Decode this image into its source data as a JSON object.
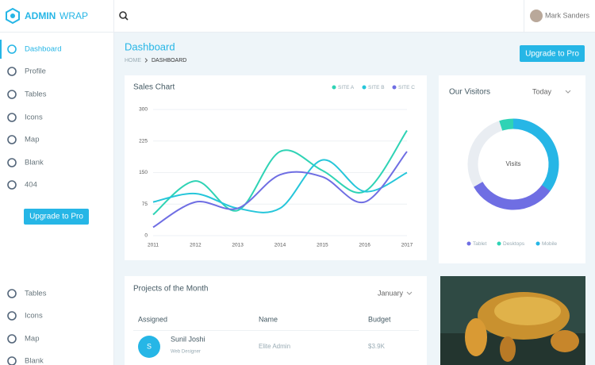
{
  "brand": {
    "bold": "ADMIN",
    "light": "WRAP"
  },
  "topbar": {
    "user": "Mark Sanders"
  },
  "sidebar": {
    "menu": [
      "Dashboard",
      "Profile",
      "Tables",
      "Icons",
      "Map",
      "Blank",
      "404"
    ],
    "button": "Upgrade to Pro",
    "menu_bottom": [
      "Tables",
      "Icons",
      "Map",
      "Blank"
    ]
  },
  "page_header": {
    "title": "Dashboard",
    "breadcrumb": [
      "HOME",
      "DASHBOARD"
    ],
    "button": "Upgrade to Pro"
  },
  "chart_data": [
    {
      "type": "line",
      "title": "Sales Chart",
      "categories": [
        "2011",
        "2012",
        "2013",
        "2014",
        "2015",
        "2016",
        "2017"
      ],
      "ylim": [
        0,
        300
      ],
      "yticks": [
        0,
        75,
        150,
        225,
        300
      ],
      "grid": true,
      "legend": "top-right",
      "series": [
        {
          "name": "SITE A",
          "color": "#2fd3b5",
          "values": [
            50,
            130,
            60,
            200,
            155,
            105,
            250
          ]
        },
        {
          "name": "SITE B",
          "color": "#26c6da",
          "values": [
            80,
            100,
            65,
            65,
            180,
            105,
            150
          ]
        },
        {
          "name": "SITE C",
          "color": "#6f6ee3",
          "values": [
            20,
            80,
            65,
            145,
            140,
            80,
            200
          ]
        }
      ]
    },
    {
      "type": "donut",
      "title": "Our Visitors",
      "filter": "Today",
      "center_label": "Visits",
      "categories": [
        "Tablet",
        "Desktops",
        "Mobile"
      ],
      "values": [
        32,
        5,
        35
      ],
      "colors": [
        "#6f6ee3",
        "#2fd3b5",
        "#26b6e6"
      ],
      "legend": "bottom"
    }
  ],
  "projects": {
    "title": "Projects of the Month",
    "filter": "January",
    "headers": [
      "Assigned",
      "Name",
      "Budget"
    ],
    "rows": [
      {
        "avatar": "S",
        "person": "Sunil Joshi",
        "role": "Web Designer",
        "name": "Elite Admin",
        "budget": "$3.9K"
      }
    ]
  }
}
